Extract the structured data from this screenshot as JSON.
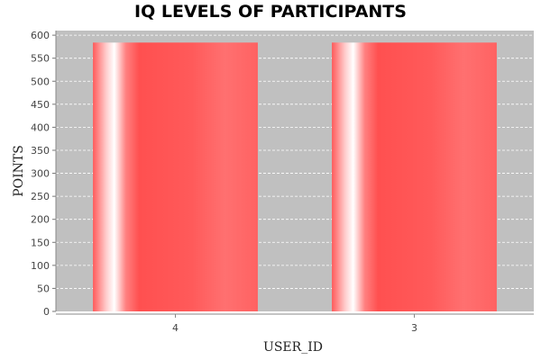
{
  "chart_data": {
    "type": "bar",
    "title": "IQ LEVELS OF PARTICIPANTS",
    "xlabel": "USER_ID",
    "ylabel": "POINTS",
    "categories": [
      "4",
      "3"
    ],
    "values": [
      584,
      584
    ],
    "ylim": [
      0,
      610
    ],
    "yticks": [
      0,
      50,
      100,
      150,
      200,
      250,
      300,
      350,
      400,
      450,
      500,
      550,
      600
    ],
    "grid": true,
    "colors": {
      "plot_background": "#c0c0c0",
      "bar": "#ff5555",
      "bar_highlight": "#ffffff",
      "gridline": "#ffffff"
    }
  }
}
